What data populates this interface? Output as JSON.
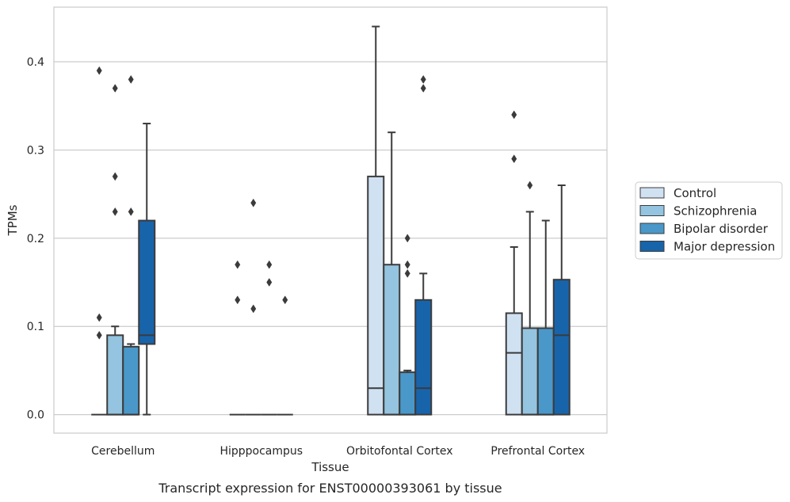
{
  "chart_data": {
    "type": "boxplot",
    "title": "",
    "caption": "Transcript expression for ENST00000393061 by tissue",
    "xlabel": "Tissue",
    "ylabel": "TPMs",
    "ylim": [
      -0.021,
      0.462
    ],
    "yticks": [
      0.0,
      0.1,
      0.2,
      0.3,
      0.4
    ],
    "ytick_labels": [
      "0.0",
      "0.1",
      "0.2",
      "0.3",
      "0.4"
    ],
    "grid": "horizontal",
    "legend_position": "right",
    "categories": [
      "Cerebellum",
      "Hipppocampus",
      "Orbitofontal Cortex",
      "Prefrontal Cortex"
    ],
    "series": [
      {
        "name": "Control",
        "color": "#d0e1f2",
        "boxes": [
          {
            "q1": 0,
            "median": 0,
            "q3": 0,
            "whisker_low": 0,
            "whisker_high": 0,
            "outliers": [
              0.39,
              0.11,
              0.09
            ]
          },
          {
            "q1": 0,
            "median": 0,
            "q3": 0,
            "whisker_low": 0,
            "whisker_high": 0,
            "outliers": [
              0.17,
              0.13
            ]
          },
          {
            "q1": 0,
            "median": 0.03,
            "q3": 0.27,
            "whisker_low": 0,
            "whisker_high": 0.44,
            "outliers": []
          },
          {
            "q1": 0,
            "median": 0.07,
            "q3": 0.115,
            "whisker_low": 0,
            "whisker_high": 0.19,
            "outliers": [
              0.34,
              0.29
            ]
          }
        ]
      },
      {
        "name": "Schizophrenia",
        "color": "#94c4df",
        "boxes": [
          {
            "q1": 0,
            "median": 0,
            "q3": 0.09,
            "whisker_low": 0,
            "whisker_high": 0.1,
            "outliers": [
              0.37,
              0.27,
              0.23
            ]
          },
          {
            "q1": 0,
            "median": 0,
            "q3": 0,
            "whisker_low": 0,
            "whisker_high": 0,
            "outliers": [
              0.24,
              0.12
            ]
          },
          {
            "q1": 0,
            "median": 0,
            "q3": 0.17,
            "whisker_low": 0,
            "whisker_high": 0.32,
            "outliers": []
          },
          {
            "q1": 0,
            "median": 0,
            "q3": 0.098,
            "whisker_low": 0,
            "whisker_high": 0.23,
            "outliers": [
              0.26
            ]
          }
        ]
      },
      {
        "name": "Bipolar disorder",
        "color": "#4a98c9",
        "boxes": [
          {
            "q1": 0,
            "median": 0,
            "q3": 0.077,
            "whisker_low": 0,
            "whisker_high": 0.08,
            "outliers": [
              0.38,
              0.23
            ]
          },
          {
            "q1": 0,
            "median": 0,
            "q3": 0,
            "whisker_low": 0,
            "whisker_high": 0,
            "outliers": [
              0.17,
              0.15
            ]
          },
          {
            "q1": 0,
            "median": 0,
            "q3": 0.048,
            "whisker_low": 0,
            "whisker_high": 0.05,
            "outliers": [
              0.2,
              0.17,
              0.16
            ]
          },
          {
            "q1": 0,
            "median": 0,
            "q3": 0.098,
            "whisker_low": 0,
            "whisker_high": 0.22,
            "outliers": []
          }
        ]
      },
      {
        "name": "Major depression",
        "color": "#1764ab",
        "boxes": [
          {
            "q1": 0.08,
            "median": 0.09,
            "q3": 0.22,
            "whisker_low": 0,
            "whisker_high": 0.33,
            "outliers": []
          },
          {
            "q1": 0,
            "median": 0,
            "q3": 0,
            "whisker_low": 0,
            "whisker_high": 0,
            "outliers": [
              0.13
            ]
          },
          {
            "q1": 0,
            "median": 0.03,
            "q3": 0.13,
            "whisker_low": 0,
            "whisker_high": 0.16,
            "outliers": [
              0.38,
              0.37
            ]
          },
          {
            "q1": 0,
            "median": 0.09,
            "q3": 0.153,
            "whisker_low": 0,
            "whisker_high": 0.26,
            "outliers": []
          }
        ]
      }
    ]
  }
}
